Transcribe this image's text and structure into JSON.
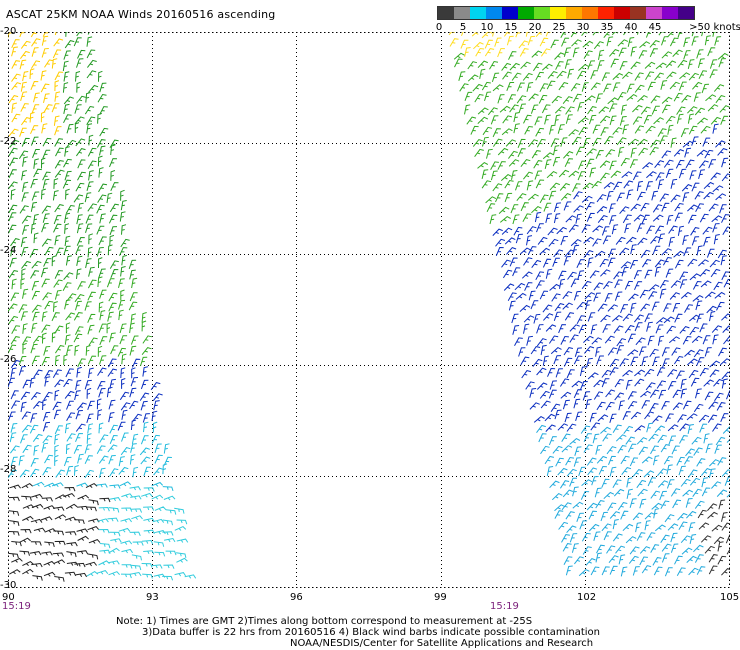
{
  "title": "ASCAT 25KM NOAA Winds 20160516 ascending",
  "map": {
    "lat_labels": [
      "-20",
      "-22",
      "-24",
      "-26",
      "-28",
      "-30"
    ],
    "lon_labels": [
      "90",
      "93",
      "96",
      "99",
      "102",
      "105"
    ],
    "lat_range": [
      -30,
      -20
    ],
    "lon_range": [
      90,
      105
    ],
    "pass_times": [
      "15:19",
      "15:19"
    ],
    "grid": "dotted"
  },
  "color_scale": {
    "tick_labels": [
      "0",
      "5",
      "10",
      "15",
      "20",
      "25",
      "30",
      "35",
      "40",
      "45",
      ">50 knots"
    ],
    "colors": [
      "#3a3a3a",
      "#8a8a8a",
      "#00d4f0",
      "#0088ee",
      "#0000cc",
      "#00aa00",
      "#66dd22",
      "#ffee00",
      "#ffaa00",
      "#ff7700",
      "#ff2200",
      "#cc0000",
      "#993322",
      "#cc44cc",
      "#8800cc",
      "#440088"
    ]
  },
  "notes": {
    "line1": "Note: 1) Times are GMT 2)Times along bottom correspond to measurement at -25S",
    "line2": "3)Data buffer is 22 hrs from 20160516 4) Black wind barbs indicate possible contamination",
    "line3": "NOAA/NESDIS/Center for Satellite Applications and Research"
  }
}
